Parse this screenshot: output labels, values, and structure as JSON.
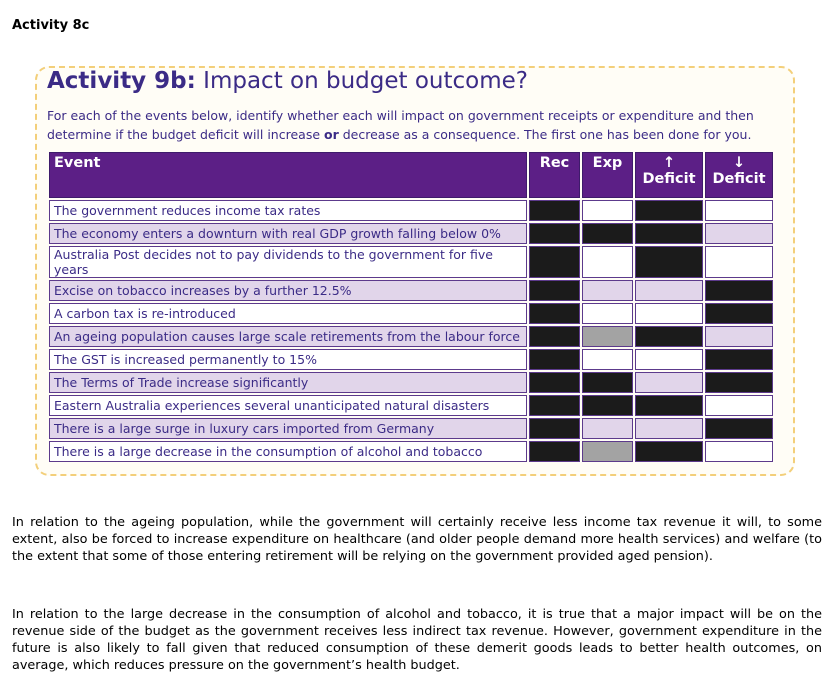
{
  "page_heading": "Activity 8c",
  "activity": {
    "title_bold": "Activity 9b:",
    "title_rest": " Impact on budget outcome?",
    "instructions_a": "For each of the events below, identify whether each will impact on government receipts or expenditure and then determine if the budget deficit will increase ",
    "instructions_or": "or",
    "instructions_b": " decrease as a consequence. The first one has been done for you."
  },
  "table": {
    "headers": {
      "event": "Event",
      "rec": "Rec",
      "exp": "Exp",
      "up_arrow": "↑",
      "up_deficit": "Deficit",
      "down_arrow": "↓",
      "down_deficit": "Deficit"
    },
    "rows": [
      "The government reduces income tax rates",
      "The economy enters a downturn with real GDP growth falling below 0%",
      "Australia Post decides not to pay dividends to the government for five years",
      "Excise on tobacco increases by a further 12.5%",
      "A carbon tax is re-introduced",
      "An ageing population causes large scale retirements from the labour force",
      "The GST is increased permanently to 15%",
      "The Terms of Trade increase significantly",
      "Eastern Australia experiences several unanticipated natural disasters",
      "There is a large surge in luxury cars imported from Germany",
      "There is a large decrease in the consumption of alcohol and tobacco"
    ],
    "cell_colors": {
      "black": "#1b1b1b",
      "white": "#ffffff",
      "lavender": "#e1d5ea",
      "grey": "#a3a3a3"
    }
  },
  "paragraph_1": "In relation to the ageing population, while the government will certainly receive less income tax revenue it will, to some extent, also be forced to increase expenditure on healthcare (and older people demand more health services) and welfare (to the extent that some of those entering retirement will be relying on the government provided aged pension).",
  "paragraph_2": "In relation to the large decrease in the consumption of alcohol and tobacco, it is true that a major impact will be on the revenue side of the budget as the government receives less indirect tax revenue. However, government expenditure in the future is also likely to fall given that reduced consumption of these demerit goods leads to better health outcomes, on average, which reduces pressure on the government’s health budget."
}
